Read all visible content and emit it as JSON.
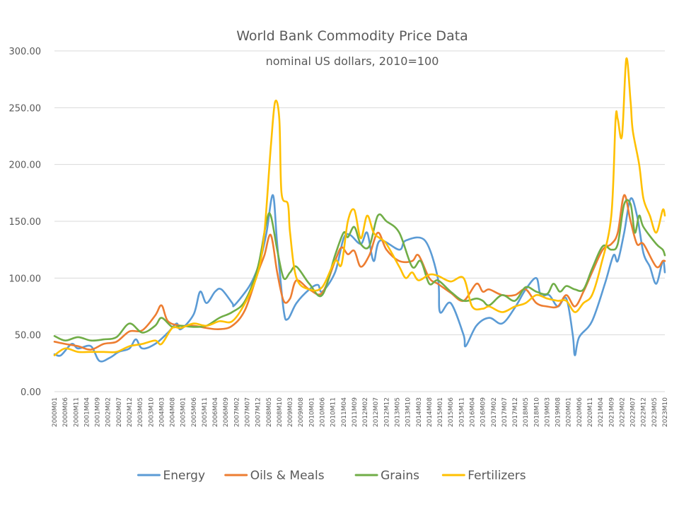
{
  "chart_data": {
    "type": "line",
    "title": "World Bank Commodity Price Data",
    "subtitle": "nominal US dollars, 2010=100",
    "ylim": [
      0,
      300
    ],
    "yticks": [
      "0.00",
      "50.00",
      "100.00",
      "150.00",
      "200.00",
      "250.00",
      "300.00"
    ],
    "grid": true,
    "legend_position": "bottom",
    "x_start": "2000M01",
    "x_end": "2023M10",
    "xtick_labels": [
      "2000M01",
      "2000M06",
      "2000M11",
      "2001M04",
      "2001M09",
      "2002M02",
      "2002M07",
      "2002M12",
      "2003M05",
      "2003M10",
      "2004M03",
      "2004M08",
      "2005M01",
      "2005M06",
      "2005M11",
      "2006M04",
      "2006M09",
      "2007M02",
      "2007M07",
      "2007M12",
      "2008M05",
      "2008M10",
      "2009M03",
      "2009M08",
      "2010M01",
      "2010M06",
      "2010M11",
      "2011M04",
      "2011M09",
      "2012M02",
      "2012M07",
      "2012M12",
      "2013M05",
      "2013M10",
      "2014M03",
      "2014M08",
      "2015M01",
      "2015M06",
      "2015M11",
      "2016M04",
      "2016M09",
      "2017M02",
      "2017M07",
      "2017M12",
      "2018M05",
      "2018M10",
      "2019M03",
      "2019M08",
      "2020M01",
      "2020M06",
      "2020M11",
      "2021M04",
      "2021M09",
      "2022M02",
      "2022M07",
      "2022M12",
      "2023M05",
      "2023M10"
    ],
    "series": [
      {
        "name": "Energy",
        "color": "#5b9bd5",
        "points": [
          [
            "2000M01",
            33
          ],
          [
            "2000M04",
            32
          ],
          [
            "2000M09",
            42
          ],
          [
            "2000M12",
            38
          ],
          [
            "2001M06",
            40
          ],
          [
            "2001M10",
            27
          ],
          [
            "2002M03",
            30
          ],
          [
            "2002M07",
            35
          ],
          [
            "2002M12",
            38
          ],
          [
            "2003M03",
            46
          ],
          [
            "2003M06",
            38
          ],
          [
            "2003M12",
            42
          ],
          [
            "2004M06",
            52
          ],
          [
            "2004M10",
            60
          ],
          [
            "2004M12",
            55
          ],
          [
            "2005M06",
            68
          ],
          [
            "2005M09",
            88
          ],
          [
            "2005M12",
            78
          ],
          [
            "2006M04",
            88
          ],
          [
            "2006M07,",
            90
          ],
          [
            "2006M12",
            78
          ],
          [
            "2007M01",
            76
          ],
          [
            "2007M07",
            90
          ],
          [
            "2007M10",
            100
          ],
          [
            "2008M01",
            115
          ],
          [
            "2008M04",
            140
          ],
          [
            "2008M07",
            173
          ],
          [
            "2008M09",
            130
          ],
          [
            "2008M12",
            72
          ],
          [
            "2009M02",
            64
          ],
          [
            "2009M06",
            78
          ],
          [
            "2009M12",
            90
          ],
          [
            "2010M04",
            94
          ],
          [
            "2010M06",
            88
          ],
          [
            "2010M12",
            105
          ],
          [
            "2011M04",
            135
          ],
          [
            "2011M07",
            138
          ],
          [
            "2011M12",
            130
          ],
          [
            "2012M03",
            140
          ],
          [
            "2012M06",
            115
          ],
          [
            "2012M09",
            133
          ],
          [
            "2013M06",
            125
          ],
          [
            "2013M09",
            133
          ],
          [
            "2014M06",
            133
          ],
          [
            "2014M12",
            100
          ],
          [
            "2015M01",
            70
          ],
          [
            "2015M06",
            78
          ],
          [
            "2015M12",
            50
          ],
          [
            "2016M01",
            40
          ],
          [
            "2016M06",
            58
          ],
          [
            "2016M12",
            65
          ],
          [
            "2017M06",
            60
          ],
          [
            "2017M12",
            74
          ],
          [
            "2018M05",
            90
          ],
          [
            "2018M10",
            100
          ],
          [
            "2018M12",
            85
          ],
          [
            "2019M04",
            85
          ],
          [
            "2019M08",
            75
          ],
          [
            "2019M12",
            82
          ],
          [
            "2020M03",
            50
          ],
          [
            "2020M04",
            32
          ],
          [
            "2020M06",
            48
          ],
          [
            "2020M12",
            62
          ],
          [
            "2021M06",
            95
          ],
          [
            "2021M10",
            120
          ],
          [
            "2021M12",
            115
          ],
          [
            "2022M03",
            140
          ],
          [
            "2022M06",
            170
          ],
          [
            "2022M09",
            155
          ],
          [
            "2022M12",
            122
          ],
          [
            "2023M03",
            110
          ],
          [
            "2023M06",
            95
          ],
          [
            "2023M09",
            115
          ],
          [
            "2023M10",
            105
          ]
        ]
      },
      {
        "name": "Oils & Meals",
        "color": "#ed7d31",
        "points": [
          [
            "2000M01",
            44
          ],
          [
            "2000M06",
            42
          ],
          [
            "2000M12",
            40
          ],
          [
            "2001M06",
            37
          ],
          [
            "2001M12",
            42
          ],
          [
            "2002M06",
            44
          ],
          [
            "2002M12",
            53
          ],
          [
            "2003M06",
            54
          ],
          [
            "2003M12",
            67
          ],
          [
            "2004M03",
            76
          ],
          [
            "2004M06",
            62
          ],
          [
            "2004M12",
            58
          ],
          [
            "2005M06",
            58
          ],
          [
            "2005M12",
            56
          ],
          [
            "2006M06",
            55
          ],
          [
            "2006M12",
            58
          ],
          [
            "2007M06",
            72
          ],
          [
            "2007M12",
            105
          ],
          [
            "2008M03",
            120
          ],
          [
            "2008M06",
            138
          ],
          [
            "2008M09",
            105
          ],
          [
            "2008M12",
            80
          ],
          [
            "2009M03",
            82
          ],
          [
            "2009M06",
            98
          ],
          [
            "2009M12",
            90
          ],
          [
            "2010M06",
            87
          ],
          [
            "2010M12",
            115
          ],
          [
            "2011M03",
            127
          ],
          [
            "2011M06",
            121
          ],
          [
            "2011M09",
            124
          ],
          [
            "2011M12",
            110
          ],
          [
            "2012M04",
            120
          ],
          [
            "2012M08",
            140
          ],
          [
            "2012M12",
            125
          ],
          [
            "2013M06",
            115
          ],
          [
            "2013M12",
            115
          ],
          [
            "2014M03",
            120
          ],
          [
            "2014M08",
            100
          ],
          [
            "2014M12",
            95
          ],
          [
            "2015M06",
            87
          ],
          [
            "2015M12",
            80
          ],
          [
            "2016M06",
            95
          ],
          [
            "2016M09",
            88
          ],
          [
            "2016M12",
            90
          ],
          [
            "2017M06",
            85
          ],
          [
            "2017M12",
            85
          ],
          [
            "2018M05",
            90
          ],
          [
            "2018M10",
            78
          ],
          [
            "2019M03",
            75
          ],
          [
            "2019M08",
            75
          ],
          [
            "2019M12",
            85
          ],
          [
            "2020M04",
            75
          ],
          [
            "2020M08",
            88
          ],
          [
            "2020M12",
            105
          ],
          [
            "2021M05",
            125
          ],
          [
            "2021M09",
            130
          ],
          [
            "2021M12",
            140
          ],
          [
            "2022M03",
            173
          ],
          [
            "2022M06",
            150
          ],
          [
            "2022M09",
            130
          ],
          [
            "2022M12",
            130
          ],
          [
            "2023M06",
            110
          ],
          [
            "2023M09",
            115
          ],
          [
            "2023M10",
            115
          ]
        ]
      },
      {
        "name": "Grains",
        "color": "#70ad47",
        "points": [
          [
            "2000M01",
            49
          ],
          [
            "2000M06",
            45
          ],
          [
            "2000M12",
            48
          ],
          [
            "2001M06",
            45
          ],
          [
            "2001M12",
            46
          ],
          [
            "2002M06",
            48
          ],
          [
            "2002M12",
            60
          ],
          [
            "2003M06",
            52
          ],
          [
            "2003M12",
            58
          ],
          [
            "2004M03",
            65
          ],
          [
            "2004M08",
            57
          ],
          [
            "2004M12",
            58
          ],
          [
            "2005M06",
            57
          ],
          [
            "2005M12",
            58
          ],
          [
            "2006M06",
            65
          ],
          [
            "2006M12",
            70
          ],
          [
            "2007M06",
            80
          ],
          [
            "2007M12",
            110
          ],
          [
            "2008M04",
            150
          ],
          [
            "2008M06",
            155
          ],
          [
            "2008M09",
            125
          ],
          [
            "2008M12",
            100
          ],
          [
            "2009M03",
            105
          ],
          [
            "2009M06",
            110
          ],
          [
            "2009M12",
            95
          ],
          [
            "2010M06",
            85
          ],
          [
            "2010M12",
            120
          ],
          [
            "2011M04",
            140
          ],
          [
            "2011M06",
            136
          ],
          [
            "2011M09",
            145
          ],
          [
            "2011M12",
            130
          ],
          [
            "2012M04",
            128
          ],
          [
            "2012M08",
            155
          ],
          [
            "2012M12",
            150
          ],
          [
            "2013M06",
            140
          ],
          [
            "2013M12",
            110
          ],
          [
            "2014M04",
            115
          ],
          [
            "2014M08",
            95
          ],
          [
            "2014M12",
            98
          ],
          [
            "2015M06",
            88
          ],
          [
            "2015M12",
            80
          ],
          [
            "2016M06",
            82
          ],
          [
            "2016M09",
            80
          ],
          [
            "2016M12",
            76
          ],
          [
            "2017M06",
            85
          ],
          [
            "2017M12",
            80
          ],
          [
            "2018M05",
            92
          ],
          [
            "2018M10",
            88
          ],
          [
            "2019M03",
            86
          ],
          [
            "2019M06",
            95
          ],
          [
            "2019M09",
            88
          ],
          [
            "2019M12",
            93
          ],
          [
            "2020M04",
            90
          ],
          [
            "2020M08",
            90
          ],
          [
            "2020M12",
            108
          ],
          [
            "2021M05",
            128
          ],
          [
            "2021M09",
            125
          ],
          [
            "2021M12",
            130
          ],
          [
            "2022M03",
            165
          ],
          [
            "2022M06",
            165
          ],
          [
            "2022M08",
            140
          ],
          [
            "2022M10",
            155
          ],
          [
            "2022M12",
            145
          ],
          [
            "2023M06",
            130
          ],
          [
            "2023M09",
            125
          ],
          [
            "2023M10",
            120
          ]
        ]
      },
      {
        "name": "Fertilizers",
        "color": "#ffc000",
        "points": [
          [
            "2000M01",
            32
          ],
          [
            "2000M06",
            38
          ],
          [
            "2000M12",
            35
          ],
          [
            "2001M06",
            35
          ],
          [
            "2001M12",
            35
          ],
          [
            "2002M06",
            35
          ],
          [
            "2002M12",
            40
          ],
          [
            "2003M06",
            42
          ],
          [
            "2003M12",
            45
          ],
          [
            "2004M03",
            42
          ],
          [
            "2004M08",
            56
          ],
          [
            "2004M12",
            56
          ],
          [
            "2005M06",
            60
          ],
          [
            "2005M12",
            58
          ],
          [
            "2006M06",
            62
          ],
          [
            "2006M12",
            62
          ],
          [
            "2007M06",
            78
          ],
          [
            "2007M12",
            105
          ],
          [
            "2008M03",
            140
          ],
          [
            "2008M06",
            215
          ],
          [
            "2008M08",
            255
          ],
          [
            "2008M10",
            240
          ],
          [
            "2008M11",
            175
          ],
          [
            "2009M02",
            165
          ],
          [
            "2009M03",
            140
          ],
          [
            "2009M06",
            100
          ],
          [
            "2009M12",
            90
          ],
          [
            "2010M06",
            92
          ],
          [
            "2010M12",
            115
          ],
          [
            "2011M03",
            112
          ],
          [
            "2011M06",
            150
          ],
          [
            "2011M09",
            160
          ],
          [
            "2011M12",
            135
          ],
          [
            "2012M03",
            155
          ],
          [
            "2012M06",
            140
          ],
          [
            "2012M09",
            135
          ],
          [
            "2012M12",
            130
          ],
          [
            "2013M06",
            110
          ],
          [
            "2013M09",
            100
          ],
          [
            "2013M12",
            105
          ],
          [
            "2014M03",
            98
          ],
          [
            "2014M08",
            103
          ],
          [
            "2014M12",
            102
          ],
          [
            "2015M06",
            97
          ],
          [
            "2015M12",
            100
          ],
          [
            "2016M04",
            75
          ],
          [
            "2016M09",
            73
          ],
          [
            "2016M12",
            75
          ],
          [
            "2017M06",
            70
          ],
          [
            "2017M12",
            75
          ],
          [
            "2018M05",
            78
          ],
          [
            "2018M10",
            85
          ],
          [
            "2019M03",
            82
          ],
          [
            "2019M08",
            80
          ],
          [
            "2019M12",
            80
          ],
          [
            "2020M04",
            70
          ],
          [
            "2020M08",
            78
          ],
          [
            "2020M12",
            85
          ],
          [
            "2021M04",
            110
          ],
          [
            "2021M09",
            155
          ],
          [
            "2021M11",
            240
          ],
          [
            "2021M12",
            240
          ],
          [
            "2022M02",
            225
          ],
          [
            "2022M04",
            293
          ],
          [
            "2022M06",
            255
          ],
          [
            "2022M07",
            230
          ],
          [
            "2022M10",
            200
          ],
          [
            "2022M12",
            170
          ],
          [
            "2023M03",
            155
          ],
          [
            "2023M06",
            140
          ],
          [
            "2023M09",
            160
          ],
          [
            "2023M10",
            155
          ]
        ]
      }
    ]
  }
}
